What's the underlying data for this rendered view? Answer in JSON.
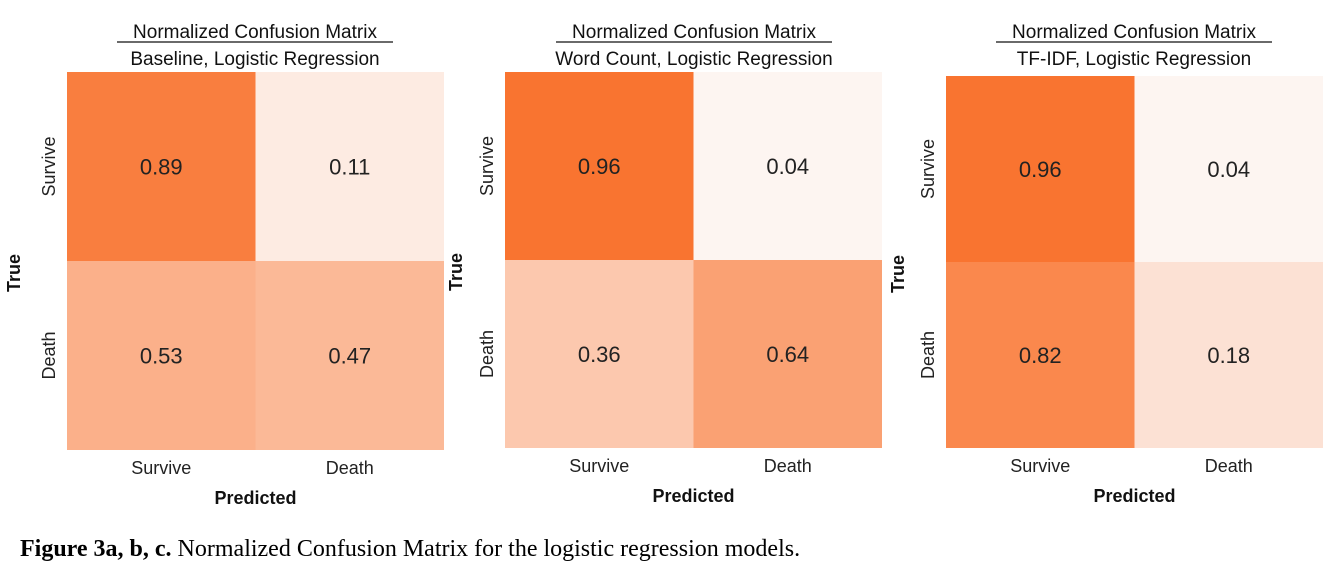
{
  "chart_data": [
    {
      "type": "heatmap",
      "title": "Normalized Confusion Matrix",
      "subtitle": "Baseline, Logistic Regression",
      "xlabel": "Predicted",
      "ylabel": "True",
      "x_categories": [
        "Survive",
        "Death"
      ],
      "y_categories": [
        "Survive",
        "Death"
      ],
      "values": [
        [
          0.89,
          0.11
        ],
        [
          0.53,
          0.47
        ]
      ],
      "colormap": {
        "low": "#fdf5f1",
        "high": "#f97430"
      }
    },
    {
      "type": "heatmap",
      "title": "Normalized Confusion Matrix",
      "subtitle": "Word Count, Logistic Regression",
      "xlabel": "Predicted",
      "ylabel": "True",
      "x_categories": [
        "Survive",
        "Death"
      ],
      "y_categories": [
        "Survive",
        "Death"
      ],
      "values": [
        [
          0.96,
          0.04
        ],
        [
          0.36,
          0.64
        ]
      ],
      "colormap": {
        "low": "#fdf5f1",
        "high": "#f97430"
      }
    },
    {
      "type": "heatmap",
      "title": "Normalized Confusion Matrix",
      "subtitle": "TF-IDF, Logistic Regression",
      "xlabel": "Predicted",
      "ylabel": "True",
      "x_categories": [
        "Survive",
        "Death"
      ],
      "y_categories": [
        "Survive",
        "Death"
      ],
      "values": [
        [
          0.96,
          0.04
        ],
        [
          0.82,
          0.18
        ]
      ],
      "colormap": {
        "low": "#fdf5f1",
        "high": "#f97430"
      }
    }
  ],
  "caption": {
    "label": "Figure",
    "number": "3a, b, c.",
    "text": "Normalized Confusion Matrix for the logistic regression models."
  }
}
